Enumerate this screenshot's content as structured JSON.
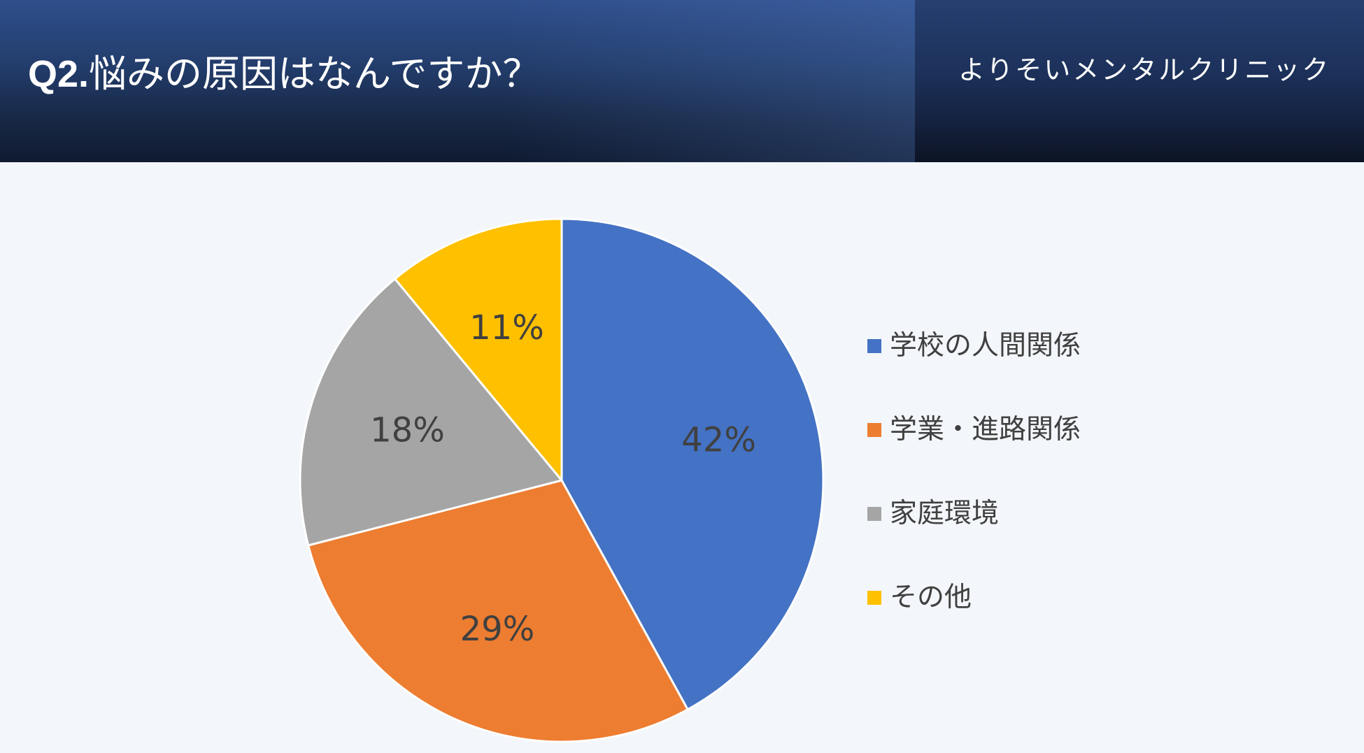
{
  "header": {
    "question_number": "Q2.",
    "question_text": "悩みの原因はなんですか？",
    "clinic_name": "よりそいメンタルクリニック"
  },
  "chart_data": {
    "type": "pie",
    "title": "Q2.悩みの原因はなんですか？",
    "categories": [
      "学校の人間関係",
      "学業・進路関係",
      "家庭環境",
      "その他"
    ],
    "values": [
      42,
      29,
      18,
      11
    ],
    "labels": [
      "42%",
      "29%",
      "18%",
      "11%"
    ],
    "colors": [
      "#4472c4",
      "#ed7d31",
      "#a5a5a5",
      "#ffc000"
    ],
    "start_angle_deg": 0,
    "direction": "clockwise",
    "legend_position": "right"
  }
}
